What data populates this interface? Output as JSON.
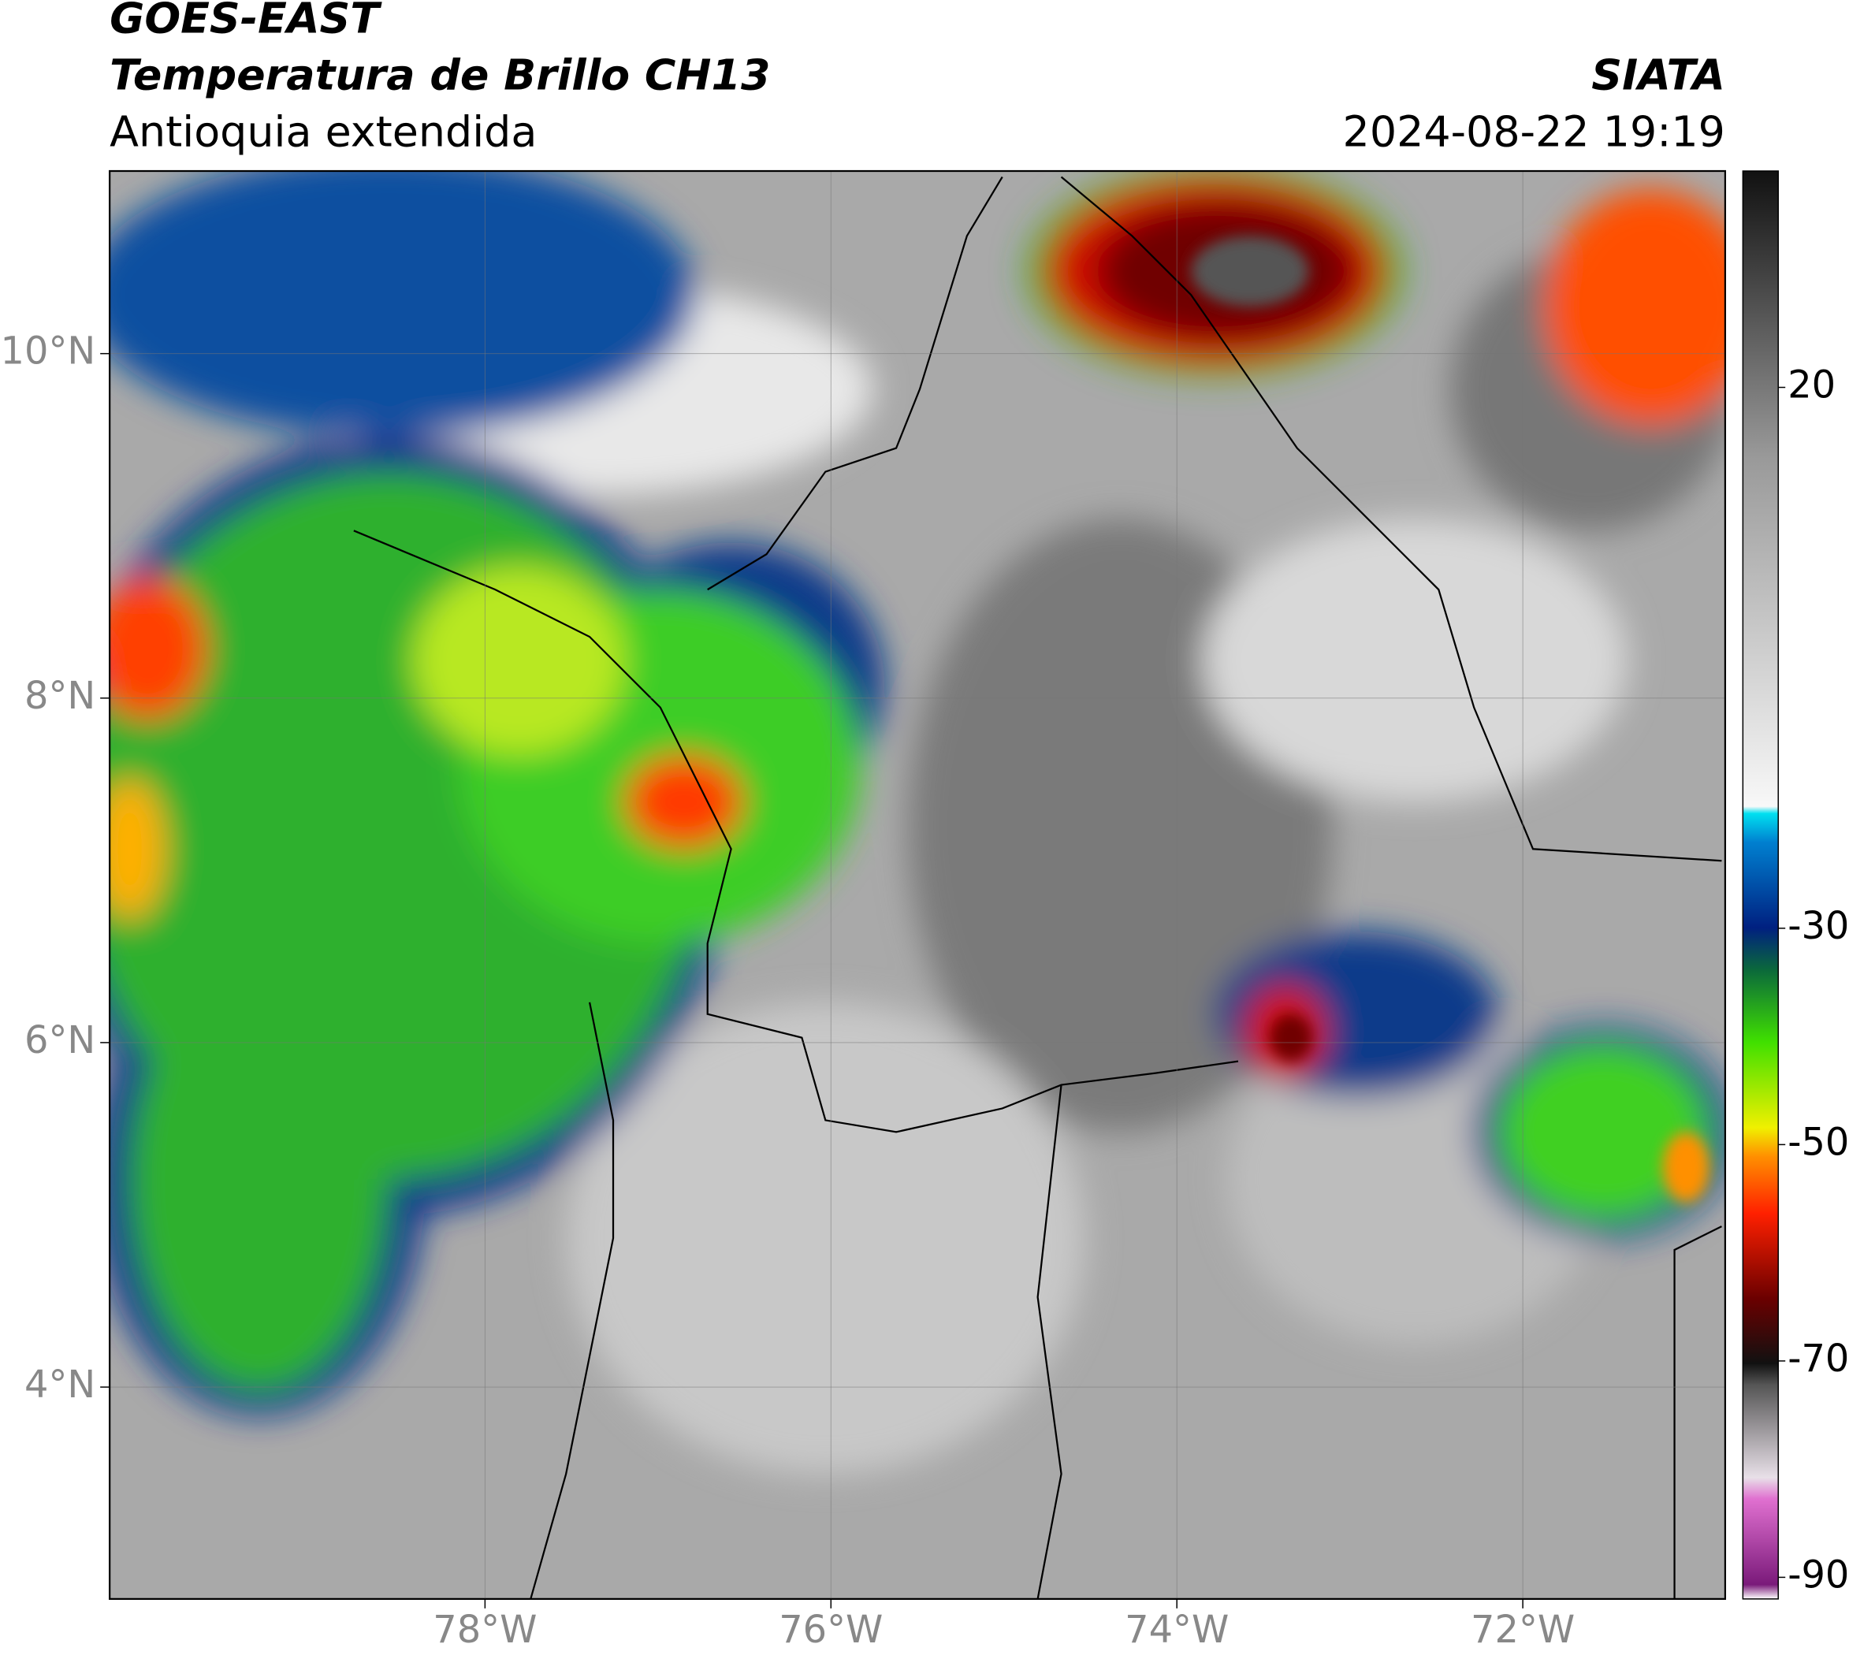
{
  "header": {
    "title": "GOES-EAST",
    "subtitle": "Temperatura de Brillo CH13",
    "region": "Antioquia extendida",
    "source": "SIATA",
    "datetime": "2024-08-22 19:19"
  },
  "map": {
    "lonlim": [
      -80.17,
      -70.83
    ],
    "latlim": [
      2.77,
      11.06
    ],
    "lonticks": [
      {
        "value": -78,
        "label": "78°W"
      },
      {
        "value": -76,
        "label": "76°W"
      },
      {
        "value": -74,
        "label": "74°W"
      },
      {
        "value": -72,
        "label": "72°W"
      }
    ],
    "latticks": [
      {
        "value": 10,
        "label": "10°N"
      },
      {
        "value": 8,
        "label": "8°N"
      },
      {
        "value": 6,
        "label": "6°N"
      },
      {
        "value": 4,
        "label": "4°N"
      }
    ],
    "grid": true
  },
  "colorbar": {
    "lim": [
      -92,
      40
    ],
    "ticks": [
      20,
      -30,
      -50,
      -70,
      -90
    ]
  }
}
